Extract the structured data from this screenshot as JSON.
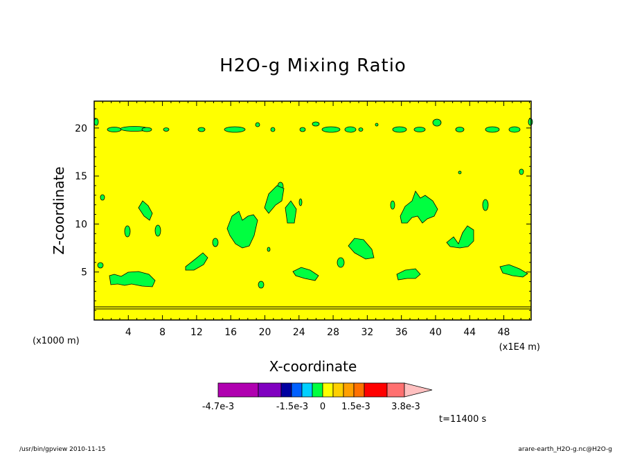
{
  "chart_data": {
    "type": "heatmap",
    "title": "H2O-g Mixing Ratio",
    "xlabel": "X-coordinate",
    "ylabel": "Z-coordinate",
    "x_unit_left": "(x1000 m)",
    "x_unit_right": "(x1E4 m)",
    "xlim": [
      0,
      51.2
    ],
    "ylim": [
      0,
      22.8
    ],
    "x_ticks": [
      4,
      8,
      12,
      16,
      20,
      24,
      28,
      32,
      36,
      40,
      44,
      48
    ],
    "y_ticks": [
      5,
      10,
      15,
      20
    ],
    "background_value_color": "#ffff00",
    "anomaly_color": "#00ff40",
    "contour_line_color": "#000000",
    "colorbar": {
      "colors": [
        "#b000b0",
        "#8000c0",
        "#0000a0",
        "#0060ff",
        "#00d0ff",
        "#00ff40",
        "#ffff00",
        "#ffd000",
        "#ffa000",
        "#ff7000",
        "#ff0000",
        "#ff7070",
        "#ffc0c0"
      ],
      "labels": [
        "-4.7e-3",
        "-1.5e-3",
        "0",
        "1.5e-3",
        "3.8e-3"
      ]
    },
    "time_label": "t=11400 s",
    "footer_left": "/usr/bin/gpview   2010-11-15",
    "footer_right": "arare-earth_H2O-g.nc@H2O-g"
  }
}
